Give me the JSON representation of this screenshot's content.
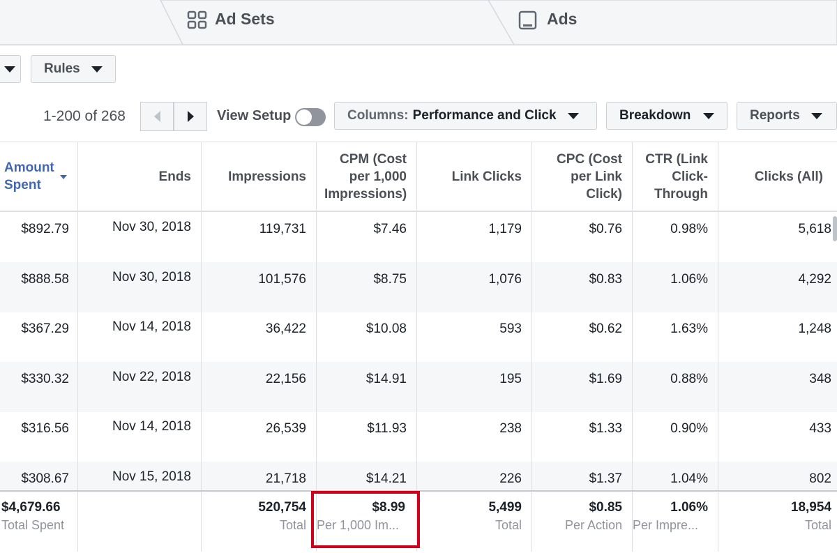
{
  "tabs": [
    {
      "label": "Ad Sets",
      "icon": "grid-icon"
    },
    {
      "label": "Ads",
      "icon": "ad-icon"
    }
  ],
  "toolbar": {
    "rules_label": "Rules",
    "pager_text": "1-200 of 268",
    "view_setup_label": "View Setup",
    "columns_prefix": "Columns:",
    "columns_value": "Performance and Click",
    "breakdown_label": "Breakdown",
    "reports_label": "Reports"
  },
  "table": {
    "headers": [
      "Amount Spent",
      "Ends",
      "Impressions",
      "CPM (Cost per 1,000 Impressions)",
      "Link Clicks",
      "CPC (Cost per Link Click)",
      "CTR (Link Click-Through",
      "Clicks (All)"
    ],
    "rows": [
      [
        "$892.79",
        "Nov 30, 2018",
        "119,731",
        "$7.46",
        "1,179",
        "$0.76",
        "0.98%",
        "5,618"
      ],
      [
        "$888.58",
        "Nov 30, 2018",
        "101,576",
        "$8.75",
        "1,076",
        "$0.83",
        "1.06%",
        "4,292"
      ],
      [
        "$367.29",
        "Nov 14, 2018",
        "36,422",
        "$10.08",
        "593",
        "$0.62",
        "1.63%",
        "1,248"
      ],
      [
        "$330.32",
        "Nov 22, 2018",
        "22,156",
        "$14.91",
        "195",
        "$1.69",
        "0.88%",
        "348"
      ],
      [
        "$316.56",
        "Nov 14, 2018",
        "26,539",
        "$11.93",
        "238",
        "$1.33",
        "0.90%",
        "433"
      ],
      [
        "$308.67",
        "Nov 15, 2018",
        "21,718",
        "$14.21",
        "226",
        "$1.37",
        "1.04%",
        "802"
      ]
    ],
    "totals": [
      {
        "value": "$4,679.66",
        "label": "Total Spent"
      },
      {
        "value": "",
        "label": ""
      },
      {
        "value": "520,754",
        "label": "Total"
      },
      {
        "value": "$8.99",
        "label": "Per 1,000 Im..."
      },
      {
        "value": "5,499",
        "label": "Total"
      },
      {
        "value": "$0.85",
        "label": "Per Action"
      },
      {
        "value": "1.06%",
        "label": "Per Impre..."
      },
      {
        "value": "18,954",
        "label": "Total"
      }
    ]
  },
  "colors": {
    "accent_link": "#4267b2",
    "highlight_box": "#d0021b"
  }
}
